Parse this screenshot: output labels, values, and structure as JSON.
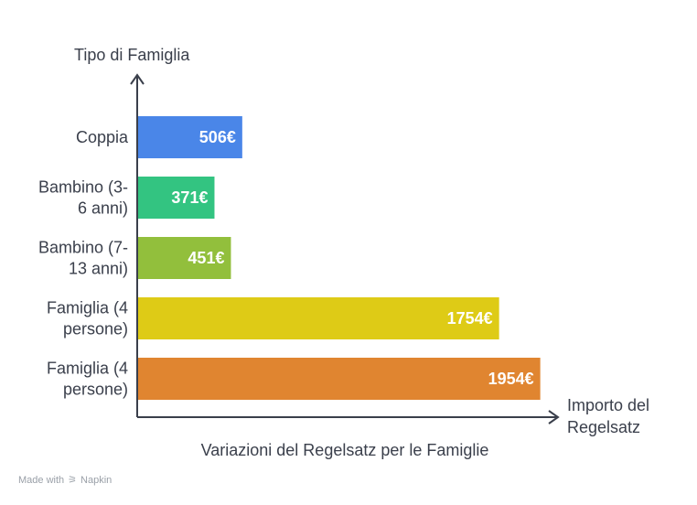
{
  "chart_data": {
    "type": "bar",
    "orientation": "horizontal",
    "y_axis_title": "Tipo di Famiglia",
    "x_axis_title": [
      "Importo del",
      "Regelsatz"
    ],
    "caption": "Variazioni del Regelsatz per le Famiglie",
    "value_suffix": "€",
    "xlim": [
      0,
      2000
    ],
    "categories": [
      [
        "Coppia"
      ],
      [
        "Bambino (3-",
        "6 anni)"
      ],
      [
        "Bambino (7-",
        "13 anni)"
      ],
      [
        "Famiglia (4",
        "persone)"
      ],
      [
        "Famiglia (4",
        "persone)"
      ]
    ],
    "values": [
      506,
      371,
      451,
      1754,
      1954
    ],
    "value_labels": [
      "506€",
      "371€",
      "451€",
      "1754€",
      "1954€"
    ],
    "colors": [
      "#4a86e8",
      "#33c481",
      "#92bf3c",
      "#decb16",
      "#e08530"
    ]
  },
  "watermark": {
    "made_with": "Made with",
    "brand": "Napkin"
  }
}
